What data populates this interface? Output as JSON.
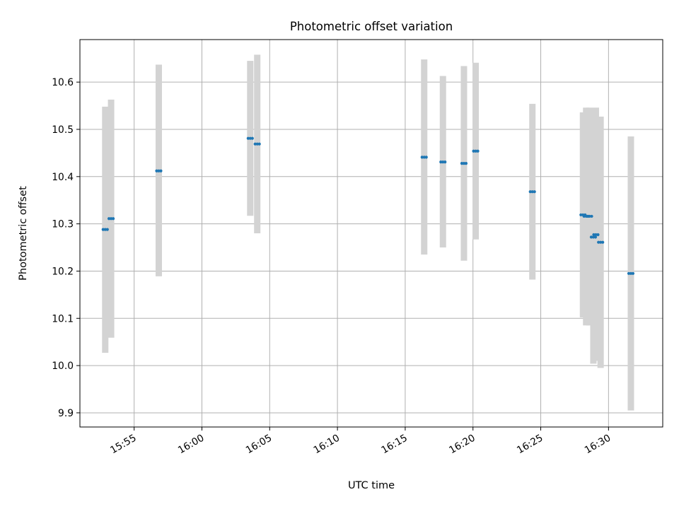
{
  "chart_data": {
    "type": "scatter",
    "title": "Photometric offset variation",
    "xlabel": "UTC time",
    "ylabel": "Photometric offset",
    "x_axis": {
      "kind": "time",
      "range": [
        "15:51:00",
        "16:34:00"
      ],
      "ticks": [
        "15:55",
        "16:00",
        "16:05",
        "16:10",
        "16:15",
        "16:20",
        "16:25",
        "16:30"
      ],
      "tick_rotation_deg": 30
    },
    "y_axis": {
      "range": [
        9.87,
        10.69
      ],
      "ticks": [
        "9.9",
        "10.0",
        "10.1",
        "10.2",
        "10.3",
        "10.4",
        "10.5",
        "10.6"
      ]
    },
    "grid": true,
    "marker_color": "#1f77b4",
    "errorbar_color": "#d3d3d3",
    "series": [
      {
        "points": [
          {
            "t": "15:52:52",
            "y": 10.288,
            "lo": 10.027,
            "hi": 10.548
          },
          {
            "t": "15:53:18",
            "y": 10.311,
            "lo": 10.059,
            "hi": 10.563
          },
          {
            "t": "15:56:49",
            "y": 10.412,
            "lo": 10.189,
            "hi": 10.637
          },
          {
            "t": "16:03:34",
            "y": 10.481,
            "lo": 10.317,
            "hi": 10.645
          },
          {
            "t": "16:04:05",
            "y": 10.469,
            "lo": 10.28,
            "hi": 10.658
          },
          {
            "t": "16:16:24",
            "y": 10.441,
            "lo": 10.235,
            "hi": 10.648
          },
          {
            "t": "16:17:47",
            "y": 10.431,
            "lo": 10.25,
            "hi": 10.613
          },
          {
            "t": "16:19:20",
            "y": 10.428,
            "lo": 10.222,
            "hi": 10.634
          },
          {
            "t": "16:20:12",
            "y": 10.454,
            "lo": 10.267,
            "hi": 10.641
          },
          {
            "t": "16:24:23",
            "y": 10.368,
            "lo": 10.182,
            "hi": 10.554
          },
          {
            "t": "16:28:07",
            "y": 10.319,
            "lo": 10.102,
            "hi": 10.536
          },
          {
            "t": "16:28:21",
            "y": 10.316,
            "lo": 10.085,
            "hi": 10.546
          },
          {
            "t": "16:28:36",
            "y": 10.316,
            "lo": 10.085,
            "hi": 10.546
          },
          {
            "t": "16:28:53",
            "y": 10.272,
            "lo": 10.004,
            "hi": 10.54
          },
          {
            "t": "16:29:04",
            "y": 10.277,
            "lo": 10.01,
            "hi": 10.546
          },
          {
            "t": "16:29:25",
            "y": 10.261,
            "lo": 9.995,
            "hi": 10.527
          },
          {
            "t": "16:31:39",
            "y": 10.195,
            "lo": 9.905,
            "hi": 10.485
          }
        ]
      }
    ]
  }
}
